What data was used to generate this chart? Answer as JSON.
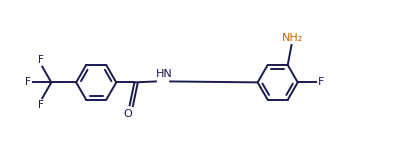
{
  "background_color": "#ffffff",
  "line_color": "#1a1a4e",
  "text_color": "#1a1a4e",
  "orange_color": "#cc6600",
  "fig_width": 3.93,
  "fig_height": 1.6,
  "dpi": 100,
  "NH_label": "HN",
  "O_label": "O",
  "F_labels": [
    "F",
    "F",
    "F"
  ],
  "NH2_label": "NH₂",
  "F_right_label": "F",
  "lw": 1.4,
  "r": 0.42,
  "lcx": 2.0,
  "lcy": 0.0,
  "rcx": 5.8,
  "rcy": 0.0,
  "xlim": [
    0.0,
    8.2
  ],
  "ylim": [
    -0.95,
    1.05
  ]
}
